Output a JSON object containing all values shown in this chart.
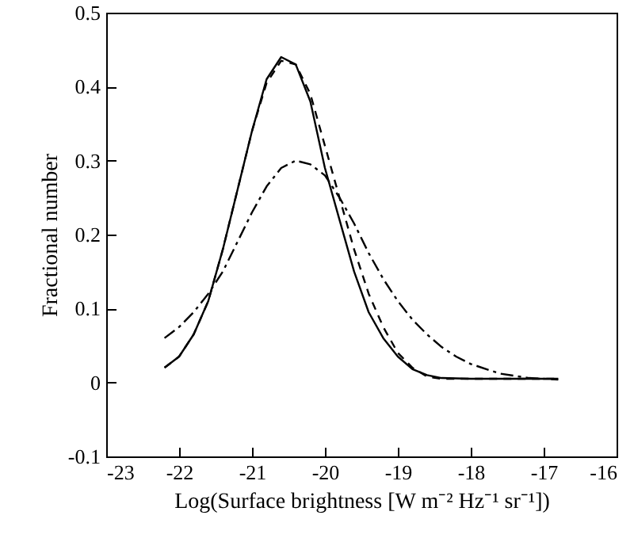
{
  "chart_data": {
    "type": "line",
    "xlabel": "Log(Surface brightness [W m⁻² Hz⁻¹ sr⁻¹])",
    "ylabel": "Fractional number",
    "xlim": [
      -23,
      -16
    ],
    "xticks": [
      -23,
      -22,
      -21,
      -20,
      -19,
      -18,
      -17,
      -16
    ],
    "ylim": [
      -0.1,
      0.5
    ],
    "yticks": [
      -0.1,
      0,
      0.1,
      0.2,
      0.3,
      0.4,
      0.5
    ],
    "grid": false,
    "marker": "none",
    "series": [
      {
        "color": "#000000",
        "line_style": "solid",
        "x": [
          -22.2,
          -22,
          -21.8,
          -21.6,
          -21.4,
          -21.2,
          -21,
          -20.8,
          -20.6,
          -20.4,
          -20.2,
          -20,
          -19.8,
          -19.6,
          -19.4,
          -19.2,
          -19,
          -18.8,
          -18.6,
          -18.4,
          -18,
          -17.5,
          -16.8
        ],
        "values": [
          0.02,
          0.035,
          0.065,
          0.11,
          0.18,
          0.26,
          0.34,
          0.41,
          0.44,
          0.43,
          0.38,
          0.29,
          0.22,
          0.15,
          0.095,
          0.06,
          0.035,
          0.018,
          0.01,
          0.006,
          0.005,
          0.005,
          0.005
        ]
      },
      {
        "color": "#000000",
        "line_style": "dashed",
        "x": [
          -22.2,
          -22,
          -21.8,
          -21.6,
          -21.4,
          -21.2,
          -21,
          -20.8,
          -20.6,
          -20.4,
          -20.2,
          -20,
          -19.8,
          -19.6,
          -19.4,
          -19.2,
          -19,
          -18.8,
          -18.6,
          -18.4,
          -18,
          -17.5,
          -16.8
        ],
        "values": [
          0.02,
          0.035,
          0.065,
          0.11,
          0.18,
          0.26,
          0.34,
          0.405,
          0.435,
          0.43,
          0.39,
          0.32,
          0.25,
          0.18,
          0.12,
          0.075,
          0.04,
          0.02,
          0.008,
          0.005,
          0.005,
          0.005,
          0.005
        ]
      },
      {
        "color": "#000000",
        "line_style": "dashdot",
        "x": [
          -22.2,
          -22,
          -21.8,
          -21.6,
          -21.4,
          -21.2,
          -21,
          -20.8,
          -20.6,
          -20.4,
          -20.2,
          -20,
          -19.8,
          -19.6,
          -19.4,
          -19.2,
          -19,
          -18.8,
          -18.6,
          -18.4,
          -18.2,
          -18,
          -17.6,
          -17.2,
          -16.8
        ],
        "values": [
          0.06,
          0.075,
          0.095,
          0.12,
          0.15,
          0.19,
          0.23,
          0.265,
          0.29,
          0.3,
          0.295,
          0.28,
          0.25,
          0.215,
          0.175,
          0.14,
          0.11,
          0.085,
          0.065,
          0.048,
          0.035,
          0.025,
          0.012,
          0.006,
          0.004
        ]
      }
    ]
  }
}
